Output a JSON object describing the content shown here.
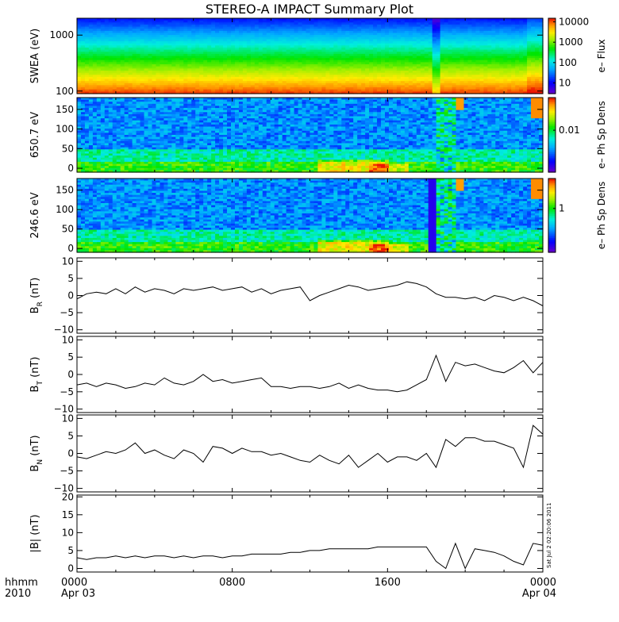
{
  "chart_data": {
    "type": "multi-panel",
    "title": "STEREO-A IMPACT Summary Plot",
    "x_axis": {
      "label_lines": [
        "hhmm",
        "2010"
      ],
      "ticks": [
        {
          "time": "0000",
          "date": "Apr 03",
          "hours": 0
        },
        {
          "time": "0800",
          "date": "",
          "hours": 8
        },
        {
          "time": "1600",
          "date": "",
          "hours": 16
        },
        {
          "time": "0000",
          "date": "Apr 04",
          "hours": 24
        }
      ],
      "range_hours": [
        0,
        24
      ]
    },
    "stamp": "Sat Jul  2 02:20:06 2011",
    "panels": [
      {
        "id": "swea",
        "kind": "spectrogram",
        "ylabel": "SWEA (eV)",
        "yscale": "log",
        "ylim": [
          90,
          2000
        ],
        "yticks": [
          {
            "v": 100,
            "label": "100"
          },
          {
            "v": 1000,
            "label": "1000"
          }
        ],
        "colorbar": {
          "label": "e–  Flux",
          "scale": "log",
          "range": [
            3,
            15000
          ],
          "ticks": [
            {
              "v": 10,
              "label": "10"
            },
            {
              "v": 100,
              "label": "100"
            },
            {
              "v": 1000,
              "label": "1000"
            },
            {
              "v": 10000,
              "label": "10000"
            }
          ]
        }
      },
      {
        "id": "pad650",
        "kind": "spectrogram",
        "ylabel": "650.7 eV",
        "yscale": "linear",
        "ylim": [
          -10,
          180
        ],
        "yticks": [
          {
            "v": 0,
            "label": "0"
          },
          {
            "v": 50,
            "label": "50"
          },
          {
            "v": 100,
            "label": "100"
          },
          {
            "v": 150,
            "label": "150"
          }
        ],
        "colorbar": {
          "label": "e–  Ph Sp Dens",
          "scale": "log",
          "range": [
            0.001,
            0.06
          ],
          "ticks": [
            {
              "v": 0.01,
              "label": "0.01"
            }
          ]
        }
      },
      {
        "id": "pad246",
        "kind": "spectrogram",
        "ylabel": "246.6 eV",
        "yscale": "linear",
        "ylim": [
          -10,
          180
        ],
        "yticks": [
          {
            "v": 0,
            "label": "0"
          },
          {
            "v": 50,
            "label": "50"
          },
          {
            "v": 100,
            "label": "100"
          },
          {
            "v": 150,
            "label": "150"
          }
        ],
        "colorbar": {
          "label": "e–  Ph Sp Dens",
          "scale": "log",
          "range": [
            0.2,
            3
          ],
          "ticks": [
            {
              "v": 1,
              "label": "1"
            }
          ]
        }
      },
      {
        "id": "br",
        "kind": "line",
        "ylabel": "B",
        "ylabel_sub": "R",
        "ylabel_unit": " (nT)",
        "ylim": [
          -11,
          11
        ],
        "yticks": [
          {
            "v": -10,
            "label": "−10"
          },
          {
            "v": -5,
            "label": "−5"
          },
          {
            "v": 0,
            "label": "0"
          },
          {
            "v": 5,
            "label": "5"
          },
          {
            "v": 10,
            "label": "10"
          }
        ],
        "x": [
          0,
          0.5,
          1,
          1.5,
          2,
          2.5,
          3,
          3.5,
          4,
          4.5,
          5,
          5.5,
          6,
          6.5,
          7,
          7.5,
          8,
          8.5,
          9,
          9.5,
          10,
          10.5,
          11,
          11.5,
          12,
          12.5,
          13,
          13.5,
          14,
          14.5,
          15,
          15.5,
          16,
          16.5,
          17,
          17.5,
          18,
          18.5,
          19,
          19.5,
          20,
          20.5,
          21,
          21.5,
          22,
          22.5,
          23,
          23.5,
          24
        ],
        "y": [
          -1,
          0.5,
          1,
          0.5,
          2,
          0.5,
          2.5,
          1,
          2,
          1.5,
          0.5,
          2,
          1.5,
          2,
          2.5,
          1.5,
          2,
          2.5,
          1,
          2,
          0.5,
          1.5,
          2,
          2.5,
          -1.5,
          0,
          1,
          2,
          3,
          2.5,
          1.5,
          2,
          2.5,
          3,
          4,
          3.5,
          2.5,
          0.5,
          -0.5,
          -0.5,
          -1,
          -0.5,
          -1.5,
          0,
          -0.5,
          -1.5,
          -0.5,
          -1.5,
          -3
        ]
      },
      {
        "id": "bt",
        "kind": "line",
        "ylabel": "B",
        "ylabel_sub": "T",
        "ylabel_unit": " (nT)",
        "ylim": [
          -11,
          11
        ],
        "yticks": [
          {
            "v": -10,
            "label": "−10"
          },
          {
            "v": -5,
            "label": "−5"
          },
          {
            "v": 0,
            "label": "0"
          },
          {
            "v": 5,
            "label": "5"
          },
          {
            "v": 10,
            "label": "10"
          }
        ],
        "x": [
          0,
          0.5,
          1,
          1.5,
          2,
          2.5,
          3,
          3.5,
          4,
          4.5,
          5,
          5.5,
          6,
          6.5,
          7,
          7.5,
          8,
          8.5,
          9,
          9.5,
          10,
          10.5,
          11,
          11.5,
          12,
          12.5,
          13,
          13.5,
          14,
          14.5,
          15,
          15.5,
          16,
          16.5,
          17,
          17.5,
          18,
          18.5,
          19,
          19.5,
          20,
          20.5,
          21,
          21.5,
          22,
          22.5,
          23,
          23.5,
          24
        ],
        "y": [
          -3,
          -2.5,
          -3.5,
          -2.5,
          -3,
          -4,
          -3.5,
          -2.5,
          -3,
          -1,
          -2.5,
          -3,
          -2,
          0,
          -2,
          -1.5,
          -2.5,
          -2,
          -1.5,
          -1,
          -3.5,
          -3.5,
          -4,
          -3.5,
          -3.5,
          -4,
          -3.5,
          -2.5,
          -4,
          -3,
          -4,
          -4.5,
          -4.5,
          -5,
          -4.5,
          -3,
          -1.5,
          5.5,
          -2,
          3.5,
          2.5,
          3,
          2,
          1,
          0.5,
          2,
          4,
          0.5,
          3.5
        ]
      },
      {
        "id": "bn",
        "kind": "line",
        "ylabel": "B",
        "ylabel_sub": "N",
        "ylabel_unit": " (nT)",
        "ylim": [
          -11,
          11
        ],
        "yticks": [
          {
            "v": -10,
            "label": "−10"
          },
          {
            "v": -5,
            "label": "−5"
          },
          {
            "v": 0,
            "label": "0"
          },
          {
            "v": 5,
            "label": "5"
          },
          {
            "v": 10,
            "label": "10"
          }
        ],
        "x": [
          0,
          0.5,
          1,
          1.5,
          2,
          2.5,
          3,
          3.5,
          4,
          4.5,
          5,
          5.5,
          6,
          6.5,
          7,
          7.5,
          8,
          8.5,
          9,
          9.5,
          10,
          10.5,
          11,
          11.5,
          12,
          12.5,
          13,
          13.5,
          14,
          14.5,
          15,
          15.5,
          16,
          16.5,
          17,
          17.5,
          18,
          18.5,
          19,
          19.5,
          20,
          20.5,
          21,
          21.5,
          22,
          22.5,
          23,
          23.5,
          24
        ],
        "y": [
          -1,
          -1.5,
          -0.5,
          0.5,
          0,
          1,
          3,
          0,
          1,
          -0.5,
          -1.5,
          1,
          0,
          -2.5,
          2,
          1.5,
          0,
          1.5,
          0.5,
          0.5,
          -0.5,
          0,
          -1,
          -2,
          -2.5,
          -0.5,
          -2,
          -3,
          -0.5,
          -4,
          -2,
          0,
          -2.5,
          -1,
          -1,
          -2,
          0,
          -4,
          4,
          2,
          4.5,
          4.5,
          3.5,
          3.5,
          2.5,
          1.5,
          -4,
          8,
          5.5
        ]
      },
      {
        "id": "bmag",
        "kind": "line",
        "ylabel": "|B| (nT)",
        "ylabel_sub": "",
        "ylabel_unit": "",
        "ylim": [
          -1,
          20.5
        ],
        "yticks": [
          {
            "v": 0,
            "label": "0"
          },
          {
            "v": 5,
            "label": "5"
          },
          {
            "v": 10,
            "label": "10"
          },
          {
            "v": 15,
            "label": "15"
          },
          {
            "v": 20,
            "label": "20"
          }
        ],
        "x": [
          0,
          0.5,
          1,
          1.5,
          2,
          2.5,
          3,
          3.5,
          4,
          4.5,
          5,
          5.5,
          6,
          6.5,
          7,
          7.5,
          8,
          8.5,
          9,
          9.5,
          10,
          10.5,
          11,
          11.5,
          12,
          12.5,
          13,
          13.5,
          14,
          14.5,
          15,
          15.5,
          16,
          16.5,
          17,
          17.5,
          18,
          18.5,
          19,
          19.5,
          20,
          20.5,
          21,
          21.5,
          22,
          22.5,
          23,
          23.5,
          24
        ],
        "y": [
          3,
          2.5,
          3,
          3,
          3.5,
          3,
          3.5,
          3,
          3.5,
          3.5,
          3,
          3.5,
          3,
          3.5,
          3.5,
          3,
          3.5,
          3.5,
          4,
          4,
          4,
          4,
          4.5,
          4.5,
          5,
          5,
          5.5,
          5.5,
          5.5,
          5.5,
          5.5,
          6,
          6,
          6,
          6,
          6,
          6,
          2,
          0,
          7,
          0,
          5.5,
          5,
          4.5,
          3.5,
          2,
          1,
          7,
          6.5
        ]
      }
    ]
  }
}
